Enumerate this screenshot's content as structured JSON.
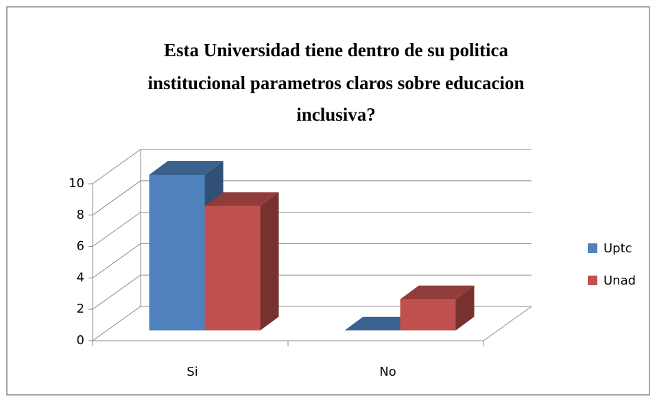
{
  "chart_data": {
    "type": "bar3d",
    "title_lines": [
      "Esta Universidad tiene dentro de su politica",
      "institucional parametros claros sobre educacion",
      "inclusiva?"
    ],
    "categories": [
      "Si",
      "No"
    ],
    "series": [
      {
        "name": "Uptc",
        "color": "#4f81bd",
        "values": [
          10,
          0
        ]
      },
      {
        "name": "Unad",
        "color": "#c0504d",
        "values": [
          8,
          2
        ]
      }
    ],
    "ylim": [
      0,
      10
    ],
    "yticks": [
      0,
      2,
      4,
      6,
      8,
      10
    ],
    "grid": true,
    "legend": "right"
  }
}
